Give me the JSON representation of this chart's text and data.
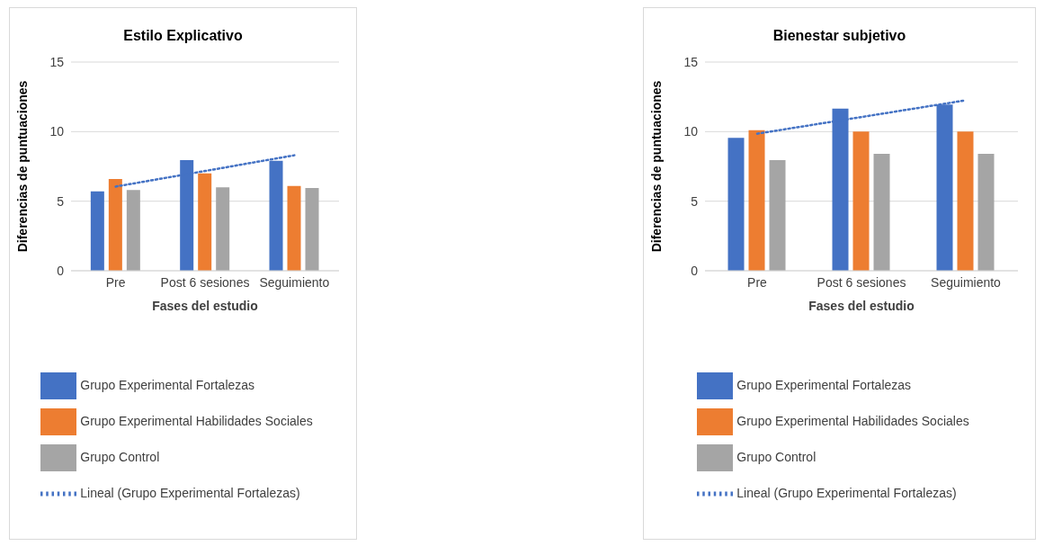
{
  "chart_data": [
    {
      "type": "bar",
      "title": "Estilo Explicativo",
      "xlabel": "Fases del estudio",
      "ylabel": "Diferencias de puntuaciones",
      "categories": [
        "Pre",
        "Post 6 sesiones",
        "Seguimiento"
      ],
      "ylim": [
        0,
        15
      ],
      "yticks": [
        0,
        5,
        10,
        15
      ],
      "grid": "y",
      "legend": "bottom",
      "series": [
        {
          "name": "Grupo Experimental Fortalezas",
          "color": "#4472c4",
          "values": [
            5.7,
            7.95,
            7.9
          ]
        },
        {
          "name": "Grupo Experimental Habilidades Sociales",
          "color": "#ed7d31",
          "values": [
            6.6,
            7.0,
            6.1
          ]
        },
        {
          "name": "Grupo Control",
          "color": "#a5a5a5",
          "values": [
            5.8,
            6.0,
            5.95
          ]
        },
        {
          "type": "line",
          "name": "Lineal (Grupo Experimental Fortalezas)",
          "color": "#4472c4",
          "line_style": "dotted",
          "marker": "none",
          "values": [
            6.05,
            7.17,
            8.3
          ]
        }
      ]
    },
    {
      "type": "bar",
      "title": "Bienestar subjetivo",
      "xlabel": "Fases del estudio",
      "ylabel": "Diferencias de puntuaciones",
      "categories": [
        "Pre",
        "Post 6 sesiones",
        "Seguimiento"
      ],
      "ylim": [
        0,
        15
      ],
      "yticks": [
        0,
        5,
        10,
        15
      ],
      "grid": "y",
      "legend": "bottom",
      "series": [
        {
          "name": "Grupo Experimental Fortalezas",
          "color": "#4472c4",
          "values": [
            9.55,
            11.65,
            11.95
          ]
        },
        {
          "name": "Grupo Experimental Habilidades Sociales",
          "color": "#ed7d31",
          "values": [
            10.1,
            10.0,
            10.0
          ]
        },
        {
          "name": "Grupo Control",
          "color": "#a5a5a5",
          "values": [
            7.95,
            8.4,
            8.4
          ]
        },
        {
          "type": "line",
          "name": "Lineal (Grupo Experimental Fortalezas)",
          "color": "#4472c4",
          "line_style": "dotted",
          "marker": "none",
          "values": [
            9.85,
            11.05,
            12.25
          ]
        }
      ]
    }
  ]
}
